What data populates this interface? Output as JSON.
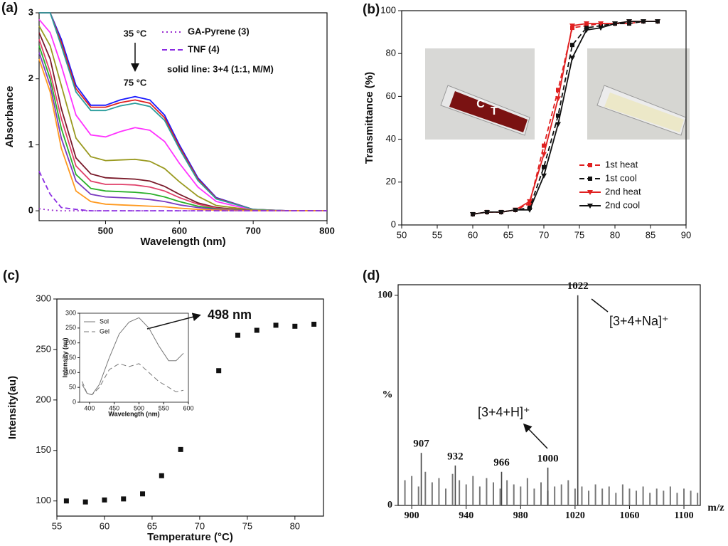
{
  "chart_data": [
    {
      "type": "line",
      "label": "(a)",
      "xlabel": "Wavelength (nm)",
      "ylabel": "Absorbance",
      "x": [
        410,
        425,
        440,
        460,
        480,
        500,
        520,
        540,
        560,
        580,
        600,
        625,
        650,
        700,
        750,
        800
      ],
      "xlim": [
        410,
        800
      ],
      "xticks": [
        500,
        600,
        700,
        800
      ],
      "ylim": [
        -0.15,
        3
      ],
      "yticks": [
        0,
        1,
        2,
        3
      ],
      "series": [
        {
          "color": "#1a1aff",
          "values": [
            3,
            3,
            2.6,
            1.9,
            1.6,
            1.6,
            1.68,
            1.73,
            1.68,
            1.45,
            1.0,
            0.5,
            0.2,
            0.02,
            0,
            0
          ]
        },
        {
          "color": "#e02020",
          "values": [
            3,
            3,
            2.55,
            1.85,
            1.57,
            1.57,
            1.64,
            1.68,
            1.63,
            1.41,
            0.97,
            0.48,
            0.19,
            0.02,
            0,
            0
          ]
        },
        {
          "color": "#2a9d9d",
          "values": [
            3,
            3,
            2.5,
            1.8,
            1.52,
            1.52,
            1.59,
            1.63,
            1.58,
            1.37,
            0.94,
            0.46,
            0.18,
            0.02,
            0,
            0
          ]
        },
        {
          "color": "#ff33ff",
          "values": [
            2.9,
            2.7,
            2.2,
            1.45,
            1.15,
            1.12,
            1.2,
            1.26,
            1.22,
            1.05,
            0.72,
            0.36,
            0.14,
            0.01,
            0,
            0
          ]
        },
        {
          "color": "#9a9a20",
          "values": [
            2.8,
            2.5,
            1.9,
            1.1,
            0.82,
            0.76,
            0.77,
            0.78,
            0.75,
            0.64,
            0.44,
            0.22,
            0.08,
            0.01,
            0,
            0
          ]
        },
        {
          "color": "#7a1a2a",
          "values": [
            2.7,
            2.3,
            1.55,
            0.8,
            0.56,
            0.5,
            0.49,
            0.48,
            0.45,
            0.37,
            0.25,
            0.12,
            0.05,
            0,
            0,
            0
          ]
        },
        {
          "color": "#e0406a",
          "values": [
            2.6,
            2.1,
            1.4,
            0.68,
            0.45,
            0.4,
            0.4,
            0.39,
            0.36,
            0.3,
            0.2,
            0.1,
            0.04,
            0,
            0,
            0
          ]
        },
        {
          "color": "#2ab02a",
          "values": [
            2.5,
            2.0,
            1.25,
            0.55,
            0.34,
            0.3,
            0.29,
            0.28,
            0.26,
            0.21,
            0.14,
            0.07,
            0.03,
            0,
            0,
            0
          ]
        },
        {
          "color": "#7a3ac0",
          "values": [
            2.4,
            1.9,
            1.1,
            0.45,
            0.25,
            0.21,
            0.2,
            0.19,
            0.17,
            0.14,
            0.09,
            0.05,
            0.02,
            0,
            0,
            0
          ]
        },
        {
          "color": "#ff9a20",
          "values": [
            2.3,
            1.8,
            0.95,
            0.3,
            0.14,
            0.1,
            0.09,
            0.08,
            0.07,
            0.06,
            0.04,
            0.02,
            0.01,
            0,
            0,
            0
          ]
        },
        {
          "name": "GA-Pyrene (3)",
          "color": "#9b30d0",
          "style": "dotted",
          "values": [
            0.03,
            0.01,
            0,
            0,
            0,
            0,
            0,
            0,
            0,
            0,
            0,
            0,
            0,
            0,
            0,
            0
          ]
        },
        {
          "name": "TNF (4)",
          "color": "#8a2be2",
          "style": "dashed",
          "values": [
            0.6,
            0.25,
            0.05,
            0.02,
            0,
            0,
            0,
            0,
            0,
            0,
            0,
            0,
            0,
            0,
            0,
            0
          ]
        }
      ],
      "annotations": [
        "35 °C",
        "75 °C",
        "solid line: 3+4 (1:1, M/M)"
      ]
    },
    {
      "type": "line",
      "label": "(b)",
      "ylabel": "Transmittance (%)",
      "x": [
        60,
        62,
        64,
        66,
        68,
        70,
        72,
        74,
        76,
        78,
        80,
        82,
        84,
        86
      ],
      "xlim": [
        50,
        90
      ],
      "xticks": [
        50,
        55,
        60,
        65,
        70,
        75,
        80,
        85,
        90
      ],
      "ylim": [
        0,
        100
      ],
      "yticks": [
        0,
        20,
        40,
        60,
        80,
        100
      ],
      "series": [
        {
          "name": "1st heat",
          "color": "#e02020",
          "style": "dashed",
          "marker": "square",
          "values": [
            5,
            6,
            6,
            7,
            10,
            37,
            63,
            92,
            93,
            94,
            94,
            94,
            95,
            95
          ]
        },
        {
          "name": "1st cool",
          "color": "#111111",
          "style": "dashed",
          "marker": "square",
          "values": [
            5,
            6,
            6,
            7,
            8,
            27,
            51,
            84,
            92,
            93,
            94,
            94,
            95,
            95
          ]
        },
        {
          "name": "2nd heat",
          "color": "#e02020",
          "style": "solid",
          "marker": "triangle",
          "values": [
            5,
            6,
            6,
            7,
            11,
            33,
            59,
            93,
            94,
            94,
            94,
            95,
            95,
            95
          ]
        },
        {
          "name": "2nd cool",
          "color": "#111111",
          "style": "solid",
          "marker": "triangle",
          "values": [
            5,
            6,
            6,
            7,
            7,
            23,
            47,
            78,
            91,
            92,
            94,
            95,
            95,
            95
          ]
        }
      ],
      "annotations": [
        "C",
        "T"
      ]
    },
    {
      "type": "scatter",
      "label": "(c)",
      "xlabel": "Temperature (°C)",
      "ylabel": "Intensity(au)",
      "x": [
        56,
        58,
        60,
        62,
        64,
        66,
        68,
        72,
        74,
        76,
        78,
        80,
        82
      ],
      "values": [
        100,
        99,
        101,
        102,
        107,
        125,
        151,
        229,
        264,
        269,
        274,
        273,
        275
      ],
      "color": "#111111",
      "xlim": [
        55,
        83
      ],
      "xticks": [
        55,
        60,
        65,
        70,
        75,
        80
      ],
      "ylim": [
        85,
        300
      ],
      "yticks": [
        100,
        150,
        200,
        250,
        300
      ],
      "annotations": [
        "498 nm"
      ]
    },
    {
      "type": "line",
      "xlabel": "Wavelength (nm)",
      "ylabel": "Intensity (au)",
      "x": [
        385,
        395,
        405,
        420,
        440,
        460,
        480,
        500,
        520,
        540,
        560,
        575,
        590
      ],
      "xlim": [
        380,
        600
      ],
      "xticks": [
        400,
        450,
        500,
        550,
        600
      ],
      "ylim": [
        0,
        300
      ],
      "yticks": [
        0,
        50,
        100,
        150,
        200,
        250,
        300
      ],
      "series": [
        {
          "name": "Sol",
          "color": "#777777",
          "style": "solid",
          "values": [
            60,
            30,
            25,
            60,
            150,
            230,
            270,
            285,
            250,
            190,
            140,
            140,
            165
          ]
        },
        {
          "name": "Gel",
          "color": "#777777",
          "style": "dashed",
          "values": [
            70,
            30,
            25,
            50,
            110,
            130,
            120,
            130,
            100,
            70,
            50,
            35,
            40
          ]
        }
      ]
    },
    {
      "type": "spectrum",
      "label": "(d)",
      "xlabel": "m/z",
      "ylabel": "%",
      "xlim": [
        890,
        1112
      ],
      "xticks": [
        900,
        940,
        980,
        1020,
        1060,
        1100
      ],
      "ylim": [
        0,
        105
      ],
      "yticks": [
        0,
        100
      ],
      "noise": {
        "x": [
          895,
          900,
          905,
          910,
          915,
          920,
          925,
          930,
          935,
          940,
          945,
          950,
          955,
          960,
          965,
          970,
          975,
          980,
          985,
          990,
          995,
          1000,
          1005,
          1010,
          1015,
          1020,
          1025,
          1030,
          1035,
          1040,
          1045,
          1050,
          1055,
          1060,
          1065,
          1070,
          1075,
          1080,
          1085,
          1090,
          1095,
          1100,
          1105,
          1110
        ],
        "values": [
          12,
          14,
          9,
          16,
          11,
          13,
          8,
          15,
          12,
          10,
          14,
          9,
          13,
          11,
          8,
          12,
          10,
          9,
          13,
          8,
          11,
          7,
          9,
          10,
          12,
          8,
          9,
          7,
          10,
          8,
          9,
          6,
          10,
          8,
          7,
          9,
          6,
          8,
          7,
          9,
          6,
          8,
          7,
          6
        ]
      },
      "peaks": {
        "x": [
          907,
          932,
          966,
          1000,
          1022
        ],
        "values": [
          25,
          19,
          16,
          18,
          100
        ]
      },
      "annotations": [
        "[3+4+Na]⁺",
        "[3+4+H]⁺"
      ]
    }
  ]
}
